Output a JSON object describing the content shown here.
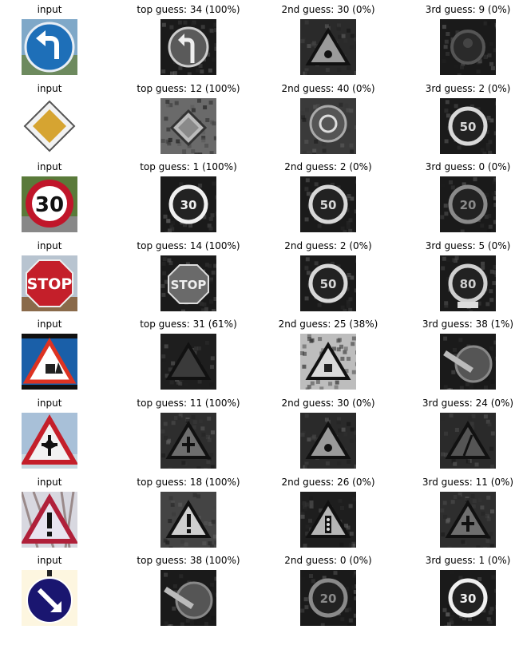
{
  "rows": [
    {
      "input": {
        "label": "input",
        "icon": "keep-left-sign-icon"
      },
      "guesses": [
        {
          "label": "top guess: 34 (100%)",
          "icon": "turn-left-sign-grayscale-icon"
        },
        {
          "label": "2nd guess: 30 (0%)",
          "icon": "warning-triangle-grayscale-icon"
        },
        {
          "label": "3rd guess: 9 (0%)",
          "icon": "dark-round-sign-grayscale-icon"
        }
      ]
    },
    {
      "input": {
        "label": "input",
        "icon": "priority-road-sign-icon"
      },
      "guesses": [
        {
          "label": "top guess: 12 (100%)",
          "icon": "priority-road-grayscale-icon"
        },
        {
          "label": "2nd guess: 40 (0%)",
          "icon": "roundabout-grayscale-icon"
        },
        {
          "label": "3rd guess: 2 (0%)",
          "icon": "speed-limit-50-grayscale-icon"
        }
      ]
    },
    {
      "input": {
        "label": "input",
        "icon": "speed-limit-30-sign-icon"
      },
      "guesses": [
        {
          "label": "top guess: 1 (100%)",
          "icon": "speed-limit-30-grayscale-icon"
        },
        {
          "label": "2nd guess: 2 (0%)",
          "icon": "speed-limit-50-grayscale-icon"
        },
        {
          "label": "3rd guess: 0 (0%)",
          "icon": "speed-limit-20-grayscale-icon"
        }
      ]
    },
    {
      "input": {
        "label": "input",
        "icon": "stop-sign-icon"
      },
      "guesses": [
        {
          "label": "top guess: 14 (100%)",
          "icon": "stop-grayscale-icon"
        },
        {
          "label": "2nd guess: 2 (0%)",
          "icon": "speed-limit-50-grayscale-icon"
        },
        {
          "label": "3rd guess: 5 (0%)",
          "icon": "speed-limit-80-grayscale-icon"
        }
      ]
    },
    {
      "input": {
        "label": "input",
        "icon": "road-work-sign-icon"
      },
      "guesses": [
        {
          "label": "top guess: 31 (61%)",
          "icon": "wild-animals-grayscale-icon"
        },
        {
          "label": "2nd guess: 25 (38%)",
          "icon": "road-work-grayscale-icon"
        },
        {
          "label": "3rd guess: 38 (1%)",
          "icon": "keep-right-grayscale-icon"
        }
      ]
    },
    {
      "input": {
        "label": "input",
        "icon": "right-of-way-sign-icon"
      },
      "guesses": [
        {
          "label": "top guess: 11 (100%)",
          "icon": "right-of-way-grayscale-icon"
        },
        {
          "label": "2nd guess: 30 (0%)",
          "icon": "warning-triangle-grayscale-icon"
        },
        {
          "label": "3rd guess: 24 (0%)",
          "icon": "road-narrows-grayscale-icon"
        }
      ]
    },
    {
      "input": {
        "label": "input",
        "icon": "general-caution-sign-icon"
      },
      "guesses": [
        {
          "label": "top guess: 18 (100%)",
          "icon": "general-caution-grayscale-icon"
        },
        {
          "label": "2nd guess: 26 (0%)",
          "icon": "traffic-signals-grayscale-icon"
        },
        {
          "label": "3rd guess: 11 (0%)",
          "icon": "right-of-way-grayscale-icon"
        }
      ]
    },
    {
      "input": {
        "label": "input",
        "icon": "keep-right-sign-icon"
      },
      "guesses": [
        {
          "label": "top guess: 38 (100%)",
          "icon": "keep-right-grayscale-icon"
        },
        {
          "label": "2nd guess: 0 (0%)",
          "icon": "speed-limit-20-grayscale-icon"
        },
        {
          "label": "3rd guess: 1 (0%)",
          "icon": "speed-limit-30-grayscale-icon"
        }
      ]
    }
  ]
}
